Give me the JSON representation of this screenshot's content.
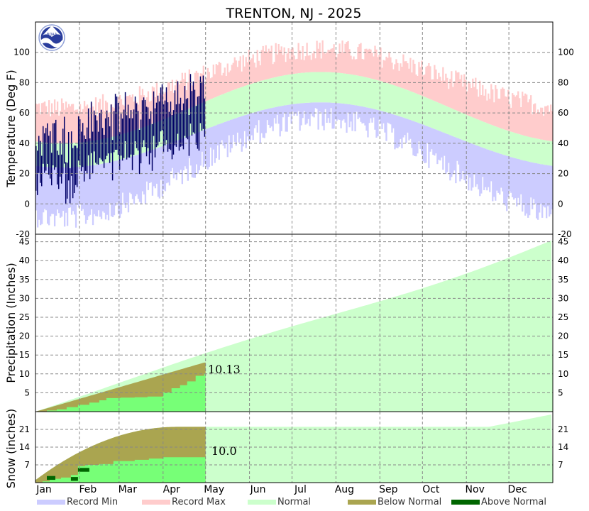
{
  "chart_data": {
    "type": "area",
    "title": "TRENTON, NJ - 2025",
    "x_months": [
      "Jan",
      "Feb",
      "Mar",
      "Apr",
      "May",
      "Jun",
      "Jul",
      "Aug",
      "Sep",
      "Oct",
      "Nov",
      "Dec"
    ],
    "colors": {
      "record_min": "#ccccff",
      "record_max": "#ffcccc",
      "normal": "#ccffcc",
      "below_normal": "#aaa550",
      "above_normal": "#006600",
      "observed_temp": "#000066",
      "observed_precip": "#77ff77"
    },
    "legend": [
      {
        "name": "Record Min",
        "color": "#ccccff"
      },
      {
        "name": "Record Max",
        "color": "#ffcccc"
      },
      {
        "name": "Normal",
        "color": "#ccffcc"
      },
      {
        "name": "Below Normal",
        "color": "#aaa550"
      },
      {
        "name": "Above Normal",
        "color": "#006600"
      }
    ],
    "panels": {
      "temperature": {
        "ylabel": "Temperature (Deg F)",
        "ylim": [
          -20,
          120
        ],
        "yticks": [
          -20,
          0,
          20,
          40,
          60,
          80,
          100
        ],
        "normal_high_range": [
          40,
          87
        ],
        "normal_low_range": [
          24,
          67
        ],
        "record_high_range": [
          62,
          101
        ],
        "record_low_range": [
          -5,
          60
        ],
        "observed_last_day": 119,
        "observed_high_jan": 40,
        "observed_low_jan": 20,
        "observed_high_apr": 72,
        "observed_low_apr": 48
      },
      "precipitation": {
        "ylabel": "Precipitation (Inches)",
        "ylim": [
          0,
          47
        ],
        "yticks": [
          5,
          10,
          15,
          20,
          25,
          30,
          35,
          40,
          45
        ],
        "normal_annual_total": 45.5,
        "normal_to_date": 13.0,
        "observed_to_date": 10.13,
        "observed_label": "10.13",
        "observed_steps": [
          {
            "day": 0,
            "value": 0.0
          },
          {
            "day": 8,
            "value": 0.3
          },
          {
            "day": 15,
            "value": 0.6
          },
          {
            "day": 22,
            "value": 1.2
          },
          {
            "day": 30,
            "value": 1.8
          },
          {
            "day": 38,
            "value": 2.4
          },
          {
            "day": 45,
            "value": 3.0
          },
          {
            "day": 50,
            "value": 3.6
          },
          {
            "day": 60,
            "value": 3.7
          },
          {
            "day": 70,
            "value": 3.8
          },
          {
            "day": 79,
            "value": 4.0
          },
          {
            "day": 90,
            "value": 5.1
          },
          {
            "day": 96,
            "value": 6.2
          },
          {
            "day": 102,
            "value": 7.0
          },
          {
            "day": 107,
            "value": 8.0
          },
          {
            "day": 113,
            "value": 9.5
          },
          {
            "day": 119,
            "value": 10.13
          }
        ]
      },
      "snow": {
        "ylabel": "Snow (inches)",
        "ylim": [
          0,
          28
        ],
        "yticks": [
          7,
          14,
          21
        ],
        "normal_seasonal_total": 22.0,
        "normal_start": 1.0,
        "normal_end_of_year": 27.0,
        "observed_to_date": 10.0,
        "observed_label": "10.0",
        "observed_steps": [
          {
            "day": 0,
            "value": 0.0
          },
          {
            "day": 5,
            "value": 0.5
          },
          {
            "day": 10,
            "value": 1.5
          },
          {
            "day": 18,
            "value": 2.0
          },
          {
            "day": 25,
            "value": 3.0
          },
          {
            "day": 30,
            "value": 6.5
          },
          {
            "day": 35,
            "value": 7.0
          },
          {
            "day": 45,
            "value": 7.3
          },
          {
            "day": 55,
            "value": 8.5
          },
          {
            "day": 70,
            "value": 9.0
          },
          {
            "day": 80,
            "value": 9.5
          },
          {
            "day": 90,
            "value": 10.0
          },
          {
            "day": 119,
            "value": 10.0
          }
        ]
      }
    }
  }
}
